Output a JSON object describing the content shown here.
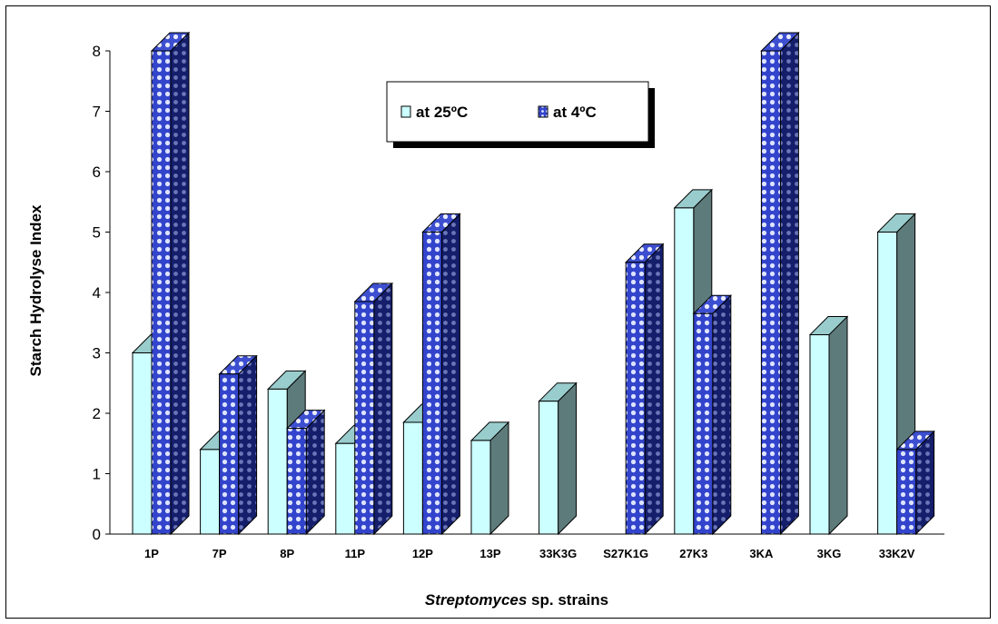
{
  "chart_data": {
    "type": "bar",
    "title": "",
    "xlabel_italic": "Streptomyces",
    "xlabel_rest": " sp. strains",
    "ylabel": "Starch Hydrolyse Index",
    "ylim": [
      0,
      8
    ],
    "yticks": [
      "0",
      "1",
      "2",
      "3",
      "4",
      "5",
      "6",
      "7",
      "8"
    ],
    "categories": [
      "1P",
      "7P",
      "8P",
      "11P",
      "12P",
      "13P",
      "33K3G",
      "S27K1G",
      "27K3",
      "3KA",
      "3KG",
      "33K2V"
    ],
    "series": [
      {
        "name": "at 25ºC",
        "values": [
          3.0,
          1.4,
          2.4,
          1.5,
          1.85,
          1.55,
          2.2,
          0,
          5.4,
          0,
          3.3,
          5.0
        ],
        "color": "#ccffff"
      },
      {
        "name": "at 4ºC",
        "values": [
          8.0,
          2.65,
          1.75,
          3.85,
          5.0,
          0,
          0,
          4.5,
          3.65,
          8.0,
          0,
          1.4
        ],
        "color": "#3344cc"
      }
    ],
    "legend_position": "top-center",
    "view": "3d-clustered-columns"
  }
}
